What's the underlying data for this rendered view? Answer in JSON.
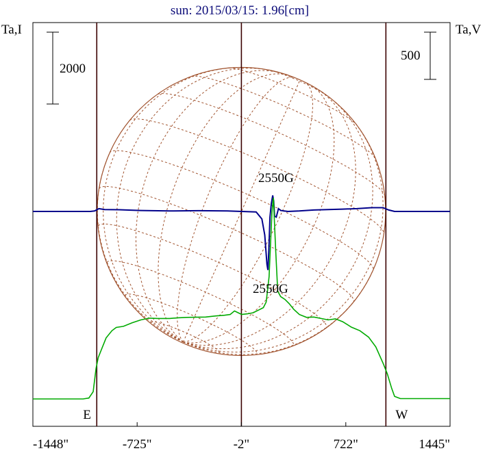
{
  "chart_data": {
    "type": "line",
    "title": "sun: 2015/03/15: 1.96[cm]",
    "y_left_label": "Ta,I",
    "y_right_label": "Ta,V",
    "scale_left_label": "2000",
    "scale_right_label": "500",
    "x_ticks": [
      {
        "value": -1448,
        "label": "-1448\""
      },
      {
        "value": -725,
        "label": "-725\""
      },
      {
        "value": -2,
        "label": "-2\""
      },
      {
        "value": 722,
        "label": "722\""
      },
      {
        "value": 1445,
        "label": "1445\""
      }
    ],
    "xlim": [
      -1448,
      1445
    ],
    "limb_markers": [
      {
        "x": -1005,
        "label": "E"
      },
      {
        "x": 1000,
        "label": "W"
      }
    ],
    "center_x": -2,
    "solar_radius_arcsec": 1000,
    "annotations": [
      {
        "text": "2550G",
        "x": 200,
        "series": "I"
      },
      {
        "text": "2550G",
        "x": 200,
        "series": "V"
      }
    ],
    "colors": {
      "stokes_I": "#00aa00",
      "stokes_V": "#00008b",
      "disk_grid": "#a0522d",
      "axes": "#000000",
      "limb_lines": "#3a0000",
      "title": "#0a0a78"
    },
    "series": [
      {
        "id": "I",
        "points": [
          [
            -1448,
            0
          ],
          [
            -1100,
            0
          ],
          [
            -1060,
            25
          ],
          [
            -1030,
            200
          ],
          [
            -1010,
            850
          ],
          [
            -995,
            1150
          ],
          [
            -970,
            1400
          ],
          [
            -940,
            1700
          ],
          [
            -900,
            1900
          ],
          [
            -870,
            1990
          ],
          [
            -820,
            2020
          ],
          [
            -760,
            2120
          ],
          [
            -700,
            2200
          ],
          [
            -640,
            2250
          ],
          [
            -580,
            2240
          ],
          [
            -500,
            2240
          ],
          [
            -440,
            2260
          ],
          [
            -380,
            2270
          ],
          [
            -320,
            2275
          ],
          [
            -250,
            2280
          ],
          [
            -180,
            2310
          ],
          [
            -120,
            2330
          ],
          [
            -80,
            2350
          ],
          [
            -50,
            2450
          ],
          [
            -20,
            2390
          ],
          [
            0,
            2350
          ],
          [
            40,
            2370
          ],
          [
            80,
            2400
          ],
          [
            120,
            2480
          ],
          [
            150,
            2540
          ],
          [
            170,
            2700
          ],
          [
            190,
            3400
          ],
          [
            210,
            5200
          ],
          [
            220,
            5600
          ],
          [
            235,
            4200
          ],
          [
            250,
            3000
          ],
          [
            270,
            2850
          ],
          [
            300,
            2770
          ],
          [
            330,
            2650
          ],
          [
            360,
            2500
          ],
          [
            400,
            2350
          ],
          [
            450,
            2270
          ],
          [
            500,
            2280
          ],
          [
            550,
            2240
          ],
          [
            600,
            2200
          ],
          [
            650,
            2230
          ],
          [
            700,
            2150
          ],
          [
            760,
            2000
          ],
          [
            820,
            1900
          ],
          [
            880,
            1720
          ],
          [
            930,
            1450
          ],
          [
            980,
            1000
          ],
          [
            1010,
            700
          ],
          [
            1040,
            300
          ],
          [
            1060,
            70
          ],
          [
            1100,
            10
          ],
          [
            1445,
            10
          ]
        ]
      },
      {
        "id": "V",
        "points": [
          [
            -1448,
            0
          ],
          [
            -1050,
            0
          ],
          [
            -1020,
            5
          ],
          [
            -990,
            30
          ],
          [
            -950,
            20
          ],
          [
            -850,
            18
          ],
          [
            -700,
            10
          ],
          [
            -500,
            5
          ],
          [
            -300,
            8
          ],
          [
            -100,
            5
          ],
          [
            0,
            0
          ],
          [
            100,
            -5
          ],
          [
            140,
            -80
          ],
          [
            160,
            -250
          ],
          [
            175,
            -560
          ],
          [
            182,
            -620
          ],
          [
            188,
            -420
          ],
          [
            196,
            -60
          ],
          [
            205,
            80
          ],
          [
            215,
            170
          ],
          [
            222,
            110
          ],
          [
            228,
            -50
          ],
          [
            240,
            -60
          ],
          [
            255,
            30
          ],
          [
            270,
            10
          ],
          [
            320,
            0
          ],
          [
            400,
            5
          ],
          [
            500,
            15
          ],
          [
            600,
            20
          ],
          [
            700,
            25
          ],
          [
            800,
            30
          ],
          [
            900,
            40
          ],
          [
            980,
            40
          ],
          [
            1020,
            15
          ],
          [
            1060,
            0
          ],
          [
            1445,
            0
          ]
        ]
      }
    ]
  }
}
